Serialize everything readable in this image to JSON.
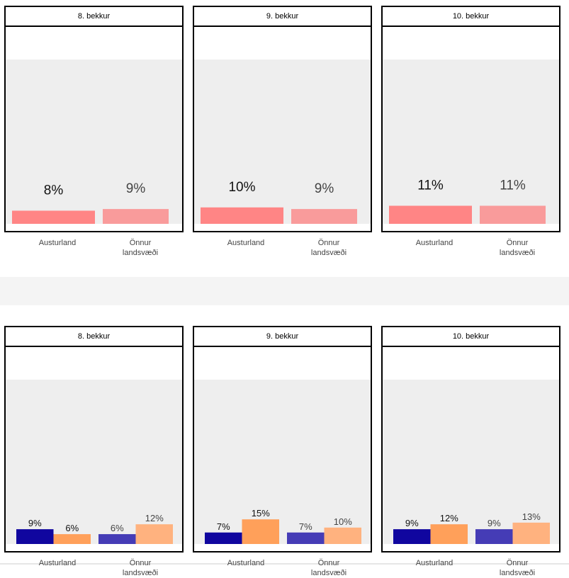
{
  "x_categories": [
    "Austurland",
    "Önnur\nlandsvæði"
  ],
  "colors": {
    "row1": [
      "#ff8585",
      "#f99b9b"
    ],
    "row2_austurland": [
      "#10069f",
      "#ffa05a"
    ],
    "row2_onnur": [
      "#453cb6",
      "#ffb27f"
    ],
    "plot_bg": "#eeeeee"
  },
  "chart_data": [
    {
      "type": "bar",
      "title": "8. bekkur",
      "categories": [
        "Austurland",
        "Önnur landsvæði"
      ],
      "values": [
        8,
        9
      ],
      "value_labels": [
        "8%",
        "9%"
      ],
      "ylim": [
        0,
        100
      ]
    },
    {
      "type": "bar",
      "title": "9. bekkur",
      "categories": [
        "Austurland",
        "Önnur landsvæði"
      ],
      "values": [
        10,
        9
      ],
      "value_labels": [
        "10%",
        "9%"
      ],
      "ylim": [
        0,
        100
      ]
    },
    {
      "type": "bar",
      "title": "10. bekkur",
      "categories": [
        "Austurland",
        "Önnur landsvæði"
      ],
      "values": [
        11,
        11
      ],
      "value_labels": [
        "11%",
        "11%"
      ],
      "ylim": [
        0,
        100
      ]
    },
    {
      "type": "bar",
      "title": "8. bekkur",
      "categories": [
        "Austurland",
        "Önnur landsvæði"
      ],
      "series": [
        {
          "values": [
            9,
            6
          ],
          "value_labels": [
            "9%",
            "6%"
          ]
        },
        {
          "values": [
            6,
            12
          ],
          "value_labels": [
            "6%",
            "12%"
          ]
        }
      ],
      "ylim": [
        0,
        100
      ]
    },
    {
      "type": "bar",
      "title": "9. bekkur",
      "categories": [
        "Austurland",
        "Önnur landsvæði"
      ],
      "series": [
        {
          "values": [
            7,
            15
          ],
          "value_labels": [
            "7%",
            "15%"
          ]
        },
        {
          "values": [
            7,
            10
          ],
          "value_labels": [
            "7%",
            "10%"
          ]
        }
      ],
      "ylim": [
        0,
        100
      ]
    },
    {
      "type": "bar",
      "title": "10. bekkur",
      "categories": [
        "Austurland",
        "Önnur landsvæði"
      ],
      "series": [
        {
          "values": [
            9,
            12
          ],
          "value_labels": [
            "9%",
            "12%"
          ]
        },
        {
          "values": [
            9,
            13
          ],
          "value_labels": [
            "9%",
            "13%"
          ]
        }
      ],
      "ylim": [
        0,
        100
      ]
    }
  ]
}
